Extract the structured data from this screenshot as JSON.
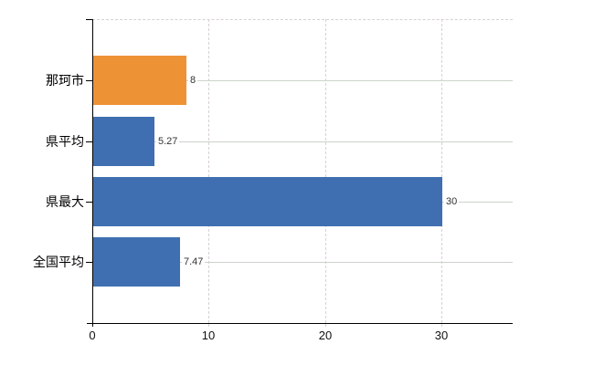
{
  "chart_data": {
    "type": "bar",
    "orientation": "horizontal",
    "title": "",
    "categories": [
      "那珂市",
      "県平均",
      "県最大",
      "全国平均"
    ],
    "values": [
      8,
      5.27,
      30,
      7.47
    ],
    "value_labels": [
      "8",
      "5.27",
      "30",
      "7.47"
    ],
    "series": [
      {
        "name": "",
        "values": [
          8,
          5.27,
          30,
          7.47
        ]
      }
    ],
    "bar_colors": [
      "#ee9236",
      "#3f6fb1",
      "#3f6fb1",
      "#3f6fb1"
    ],
    "x_ticks": [
      0,
      10,
      20,
      30
    ],
    "x_tick_labels": [
      "0",
      "10",
      "20",
      "30"
    ],
    "xlim": [
      0,
      36.1
    ],
    "grid": true,
    "legend_position": "none"
  },
  "colors": {
    "bar_orange": "#ee9236",
    "bar_blue": "#3f6fb1",
    "h_gridline": "#ccd3cb",
    "v_gridline": "#d7d0d7",
    "axis": "#000000",
    "value_label": "#333333",
    "background": "#ffffff"
  }
}
